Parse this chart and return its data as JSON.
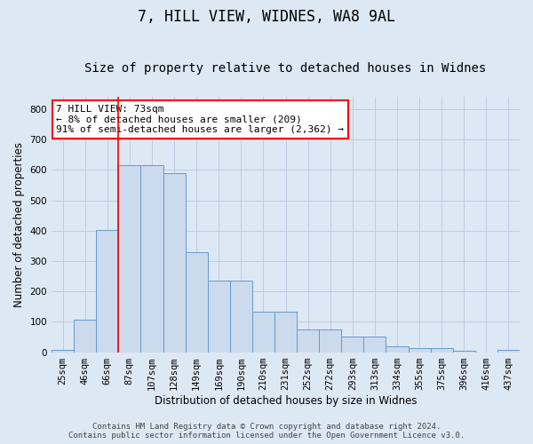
{
  "title": "7, HILL VIEW, WIDNES, WA8 9AL",
  "subtitle": "Size of property relative to detached houses in Widnes",
  "xlabel": "Distribution of detached houses by size in Widnes",
  "ylabel": "Number of detached properties",
  "categories": [
    "25sqm",
    "46sqm",
    "66sqm",
    "87sqm",
    "107sqm",
    "128sqm",
    "149sqm",
    "169sqm",
    "190sqm",
    "210sqm",
    "231sqm",
    "252sqm",
    "272sqm",
    "293sqm",
    "313sqm",
    "334sqm",
    "355sqm",
    "375sqm",
    "396sqm",
    "416sqm",
    "437sqm"
  ],
  "values": [
    8,
    107,
    403,
    615,
    615,
    590,
    328,
    235,
    235,
    133,
    133,
    76,
    76,
    50,
    50,
    18,
    13,
    13,
    5,
    0,
    8
  ],
  "bar_color": "#ccdaed",
  "bar_edge_color": "#6699cc",
  "background_color": "#dde8f5",
  "grid_color": "#c0cce0",
  "annotation_text": "7 HILL VIEW: 73sqm\n← 8% of detached houses are smaller (209)\n91% of semi-detached houses are larger (2,362) →",
  "red_line_x": 2.5,
  "ylim": [
    0,
    840
  ],
  "yticks": [
    0,
    100,
    200,
    300,
    400,
    500,
    600,
    700,
    800
  ],
  "footnote": "Contains HM Land Registry data © Crown copyright and database right 2024.\nContains public sector information licensed under the Open Government Licence v3.0.",
  "title_fontsize": 12,
  "subtitle_fontsize": 10,
  "xlabel_fontsize": 8.5,
  "ylabel_fontsize": 8.5,
  "tick_fontsize": 7.5,
  "ann_fontsize": 8,
  "footnote_fontsize": 6.5
}
